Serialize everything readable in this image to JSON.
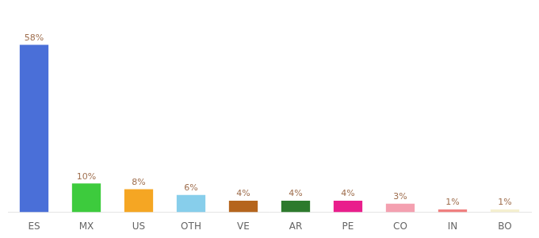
{
  "chart_data": {
    "type": "bar",
    "categories": [
      "ES",
      "MX",
      "US",
      "OTH",
      "VE",
      "AR",
      "PE",
      "CO",
      "IN",
      "BO"
    ],
    "values": [
      58,
      10,
      8,
      6,
      4,
      4,
      4,
      3,
      1,
      1
    ],
    "value_labels": [
      "58%",
      "10%",
      "8%",
      "6%",
      "4%",
      "4%",
      "4%",
      "3%",
      "1%",
      "1%"
    ],
    "colors": [
      "#4a6fd8",
      "#3dcb3d",
      "#f5a623",
      "#87ceeb",
      "#b5651d",
      "#2d7a2d",
      "#e91e8c",
      "#f4a0b0",
      "#f08080",
      "#f5f0d0"
    ],
    "ylim": [
      0,
      68
    ],
    "grid": false,
    "legend": false,
    "data_labels": true,
    "tick_labels": "x"
  }
}
